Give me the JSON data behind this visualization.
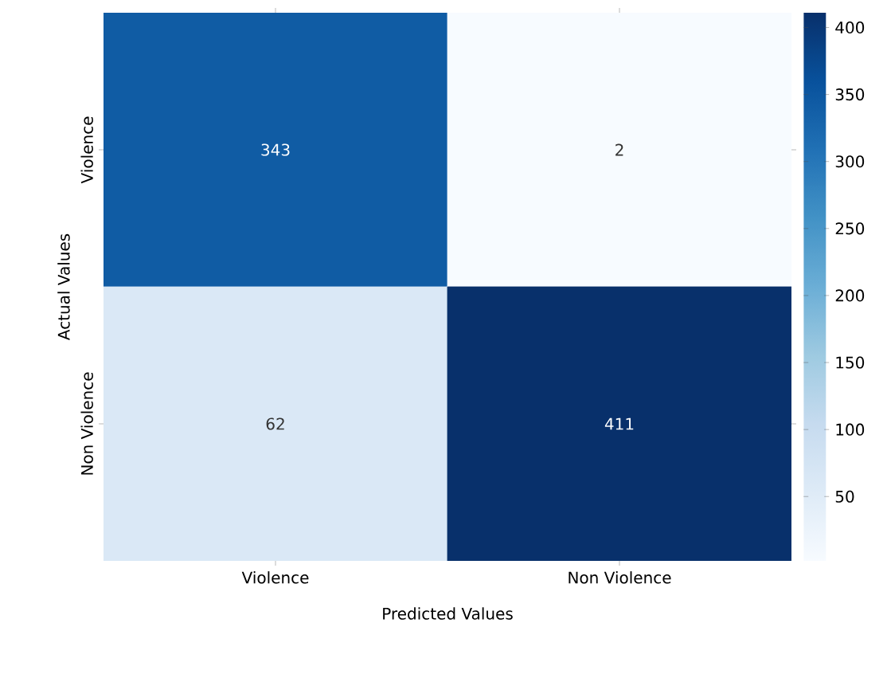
{
  "chart_data": {
    "type": "heatmap",
    "xlabel": "Predicted Values",
    "ylabel": "Actual Values",
    "categories": [
      "Violence",
      "Non Violence"
    ],
    "y_categories": [
      "Violence",
      "Non Violence"
    ],
    "cells": [
      [
        343,
        2
      ],
      [
        62,
        411
      ]
    ],
    "clim": [
      2,
      411
    ],
    "cticks": [
      50,
      100,
      150,
      200,
      250,
      300,
      350,
      400
    ],
    "data_labels": true
  }
}
